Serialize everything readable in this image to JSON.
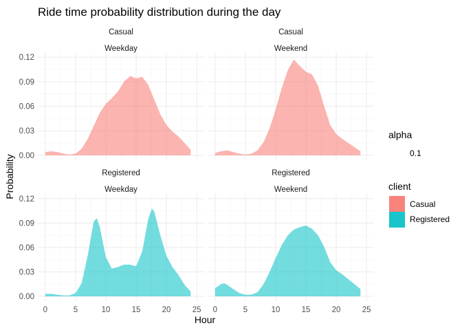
{
  "chart_data": {
    "type": "area",
    "title": "Ride time probability distribution during the day",
    "xlabel": "Hour",
    "ylabel": "Probability",
    "xlim": [
      0,
      25
    ],
    "ylim": [
      0,
      0.12
    ],
    "x_ticks": [
      0,
      5,
      10,
      15,
      20,
      25
    ],
    "y_ticks": [
      0,
      0.03,
      0.06,
      0.09,
      0.12
    ],
    "y_tick_labels": [
      "0.00",
      "0.03",
      "0.06",
      "0.09",
      "0.12"
    ],
    "legend": {
      "alpha_title": "alpha",
      "alpha_value": "0.1",
      "fill_title": "client",
      "entries": [
        {
          "label": "Casual",
          "color": "#F8766D"
        },
        {
          "label": "Registered",
          "color": "#00BFC4"
        }
      ],
      "position": "right"
    },
    "panels": [
      {
        "strip_top": "Casual",
        "strip_bottom": "Weekday",
        "color": "#F8766D",
        "points": [
          [
            0,
            0.004
          ],
          [
            1,
            0.005
          ],
          [
            2,
            0.004
          ],
          [
            3,
            0.002
          ],
          [
            4,
            0.001
          ],
          [
            5,
            0.002
          ],
          [
            6,
            0.008
          ],
          [
            7,
            0.02
          ],
          [
            8,
            0.036
          ],
          [
            9,
            0.052
          ],
          [
            10,
            0.063
          ],
          [
            11,
            0.07
          ],
          [
            12,
            0.078
          ],
          [
            13,
            0.09
          ],
          [
            14,
            0.097
          ],
          [
            15,
            0.094
          ],
          [
            16,
            0.096
          ],
          [
            17,
            0.086
          ],
          [
            18,
            0.068
          ],
          [
            19,
            0.05
          ],
          [
            20,
            0.037
          ],
          [
            21,
            0.029
          ],
          [
            22,
            0.023
          ],
          [
            23,
            0.015
          ],
          [
            24,
            0.007
          ]
        ]
      },
      {
        "strip_top": "Casual",
        "strip_bottom": "Weekend",
        "color": "#F8766D",
        "points": [
          [
            0,
            0.003
          ],
          [
            1,
            0.005
          ],
          [
            2,
            0.006
          ],
          [
            3,
            0.004
          ],
          [
            4,
            0.002
          ],
          [
            5,
            0.001
          ],
          [
            6,
            0.002
          ],
          [
            7,
            0.006
          ],
          [
            8,
            0.016
          ],
          [
            9,
            0.033
          ],
          [
            10,
            0.056
          ],
          [
            11,
            0.082
          ],
          [
            12,
            0.104
          ],
          [
            13,
            0.117
          ],
          [
            14,
            0.109
          ],
          [
            15,
            0.102
          ],
          [
            16,
            0.099
          ],
          [
            17,
            0.085
          ],
          [
            18,
            0.06
          ],
          [
            19,
            0.037
          ],
          [
            20,
            0.026
          ],
          [
            21,
            0.02
          ],
          [
            22,
            0.015
          ],
          [
            23,
            0.01
          ],
          [
            24,
            0.005
          ]
        ]
      },
      {
        "strip_top": "Registered",
        "strip_bottom": "Weekday",
        "color": "#00BFC4",
        "points": [
          [
            0,
            0.003
          ],
          [
            1,
            0.003
          ],
          [
            2,
            0.002
          ],
          [
            3,
            0.001
          ],
          [
            4,
            0.001
          ],
          [
            5,
            0.004
          ],
          [
            6,
            0.016
          ],
          [
            7,
            0.05
          ],
          [
            8,
            0.092
          ],
          [
            8.5,
            0.096
          ],
          [
            9,
            0.085
          ],
          [
            10,
            0.048
          ],
          [
            11,
            0.034
          ],
          [
            12,
            0.036
          ],
          [
            13,
            0.039
          ],
          [
            14,
            0.039
          ],
          [
            15,
            0.037
          ],
          [
            16,
            0.055
          ],
          [
            17,
            0.095
          ],
          [
            17.6,
            0.108
          ],
          [
            18,
            0.104
          ],
          [
            19,
            0.075
          ],
          [
            20,
            0.05
          ],
          [
            21,
            0.036
          ],
          [
            22,
            0.026
          ],
          [
            23,
            0.014
          ],
          [
            24,
            0.006
          ]
        ]
      },
      {
        "strip_top": "Registered",
        "strip_bottom": "Weekend",
        "color": "#00BFC4",
        "points": [
          [
            0,
            0.01
          ],
          [
            1,
            0.015
          ],
          [
            1.5,
            0.016
          ],
          [
            2,
            0.014
          ],
          [
            3,
            0.009
          ],
          [
            4,
            0.004
          ],
          [
            5,
            0.002
          ],
          [
            6,
            0.002
          ],
          [
            7,
            0.005
          ],
          [
            8,
            0.015
          ],
          [
            9,
            0.03
          ],
          [
            10,
            0.047
          ],
          [
            11,
            0.063
          ],
          [
            12,
            0.075
          ],
          [
            13,
            0.082
          ],
          [
            14,
            0.085
          ],
          [
            15,
            0.087
          ],
          [
            16,
            0.083
          ],
          [
            17,
            0.075
          ],
          [
            18,
            0.061
          ],
          [
            19,
            0.042
          ],
          [
            20,
            0.032
          ],
          [
            21,
            0.027
          ],
          [
            22,
            0.021
          ],
          [
            23,
            0.015
          ],
          [
            24,
            0.009
          ]
        ]
      }
    ]
  }
}
